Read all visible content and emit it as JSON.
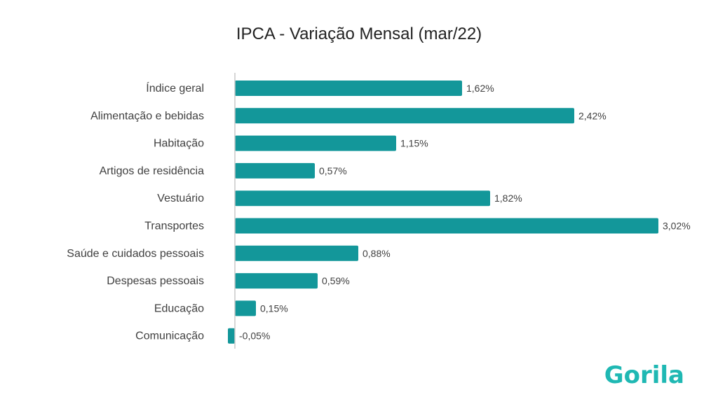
{
  "chart_data": {
    "type": "bar",
    "orientation": "horizontal",
    "title": "IPCA - Variação Mensal (mar/22)",
    "xlabel": "",
    "ylabel": "",
    "grid": false,
    "xlim": [
      -0.05,
      3.02
    ],
    "categories": [
      "Índice geral",
      "Alimentação e bebidas",
      "Habitação",
      "Artigos de residência",
      "Vestuário",
      "Transportes",
      "Saúde e cuidados pessoais",
      "Despesas pessoais",
      "Educação",
      "Comunicação"
    ],
    "values": [
      1.62,
      2.42,
      1.15,
      0.57,
      1.82,
      3.02,
      0.88,
      0.59,
      0.15,
      -0.05
    ],
    "data_labels": [
      "1,62%",
      "2,42%",
      "1,15%",
      "0,57%",
      "1,82%",
      "3,02%",
      "0,88%",
      "0,59%",
      "0,15%",
      "-0,05%"
    ],
    "bar_color": "#13979a",
    "axis_color": "#c8c8c8"
  },
  "logo": {
    "text": "Gorila",
    "color": "#1fb8b3"
  }
}
